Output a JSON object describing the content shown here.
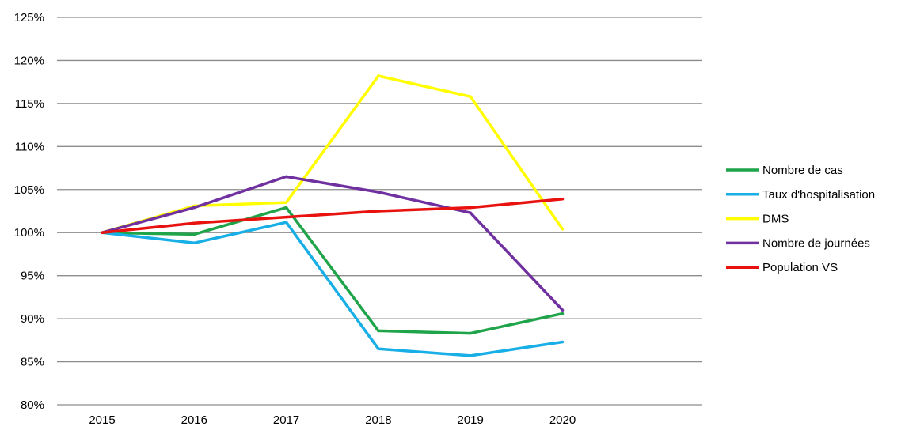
{
  "chart_data": {
    "type": "line",
    "categories": [
      "2015",
      "2016",
      "2017",
      "2018",
      "2019",
      "2020"
    ],
    "y_tick_labels": [
      "80%",
      "85%",
      "90%",
      "95%",
      "100%",
      "105%",
      "110%",
      "115%",
      "120%",
      "125%"
    ],
    "ylim": [
      80,
      125
    ],
    "y_step": 5,
    "grid": true,
    "legend_position": "right",
    "series": [
      {
        "name": "Nombre de cas",
        "color": "#1fa44a",
        "values": [
          100,
          99.8,
          102.9,
          88.6,
          88.3,
          90.6
        ]
      },
      {
        "name": "Taux d'hospitalisation",
        "color": "#18aee6",
        "values": [
          100,
          98.8,
          101.2,
          86.5,
          85.7,
          87.3
        ]
      },
      {
        "name": "DMS",
        "color": "#ffff00",
        "values": [
          100,
          103.1,
          103.5,
          118.2,
          115.8,
          100.4
        ]
      },
      {
        "name": "Nombre de journées",
        "color": "#7030a0",
        "values": [
          100,
          102.9,
          106.5,
          104.7,
          102.3,
          91.0
        ]
      },
      {
        "name": "Population VS",
        "color": "#e8130f",
        "values": [
          100,
          101.1,
          101.8,
          102.5,
          102.9,
          103.9
        ]
      }
    ]
  }
}
